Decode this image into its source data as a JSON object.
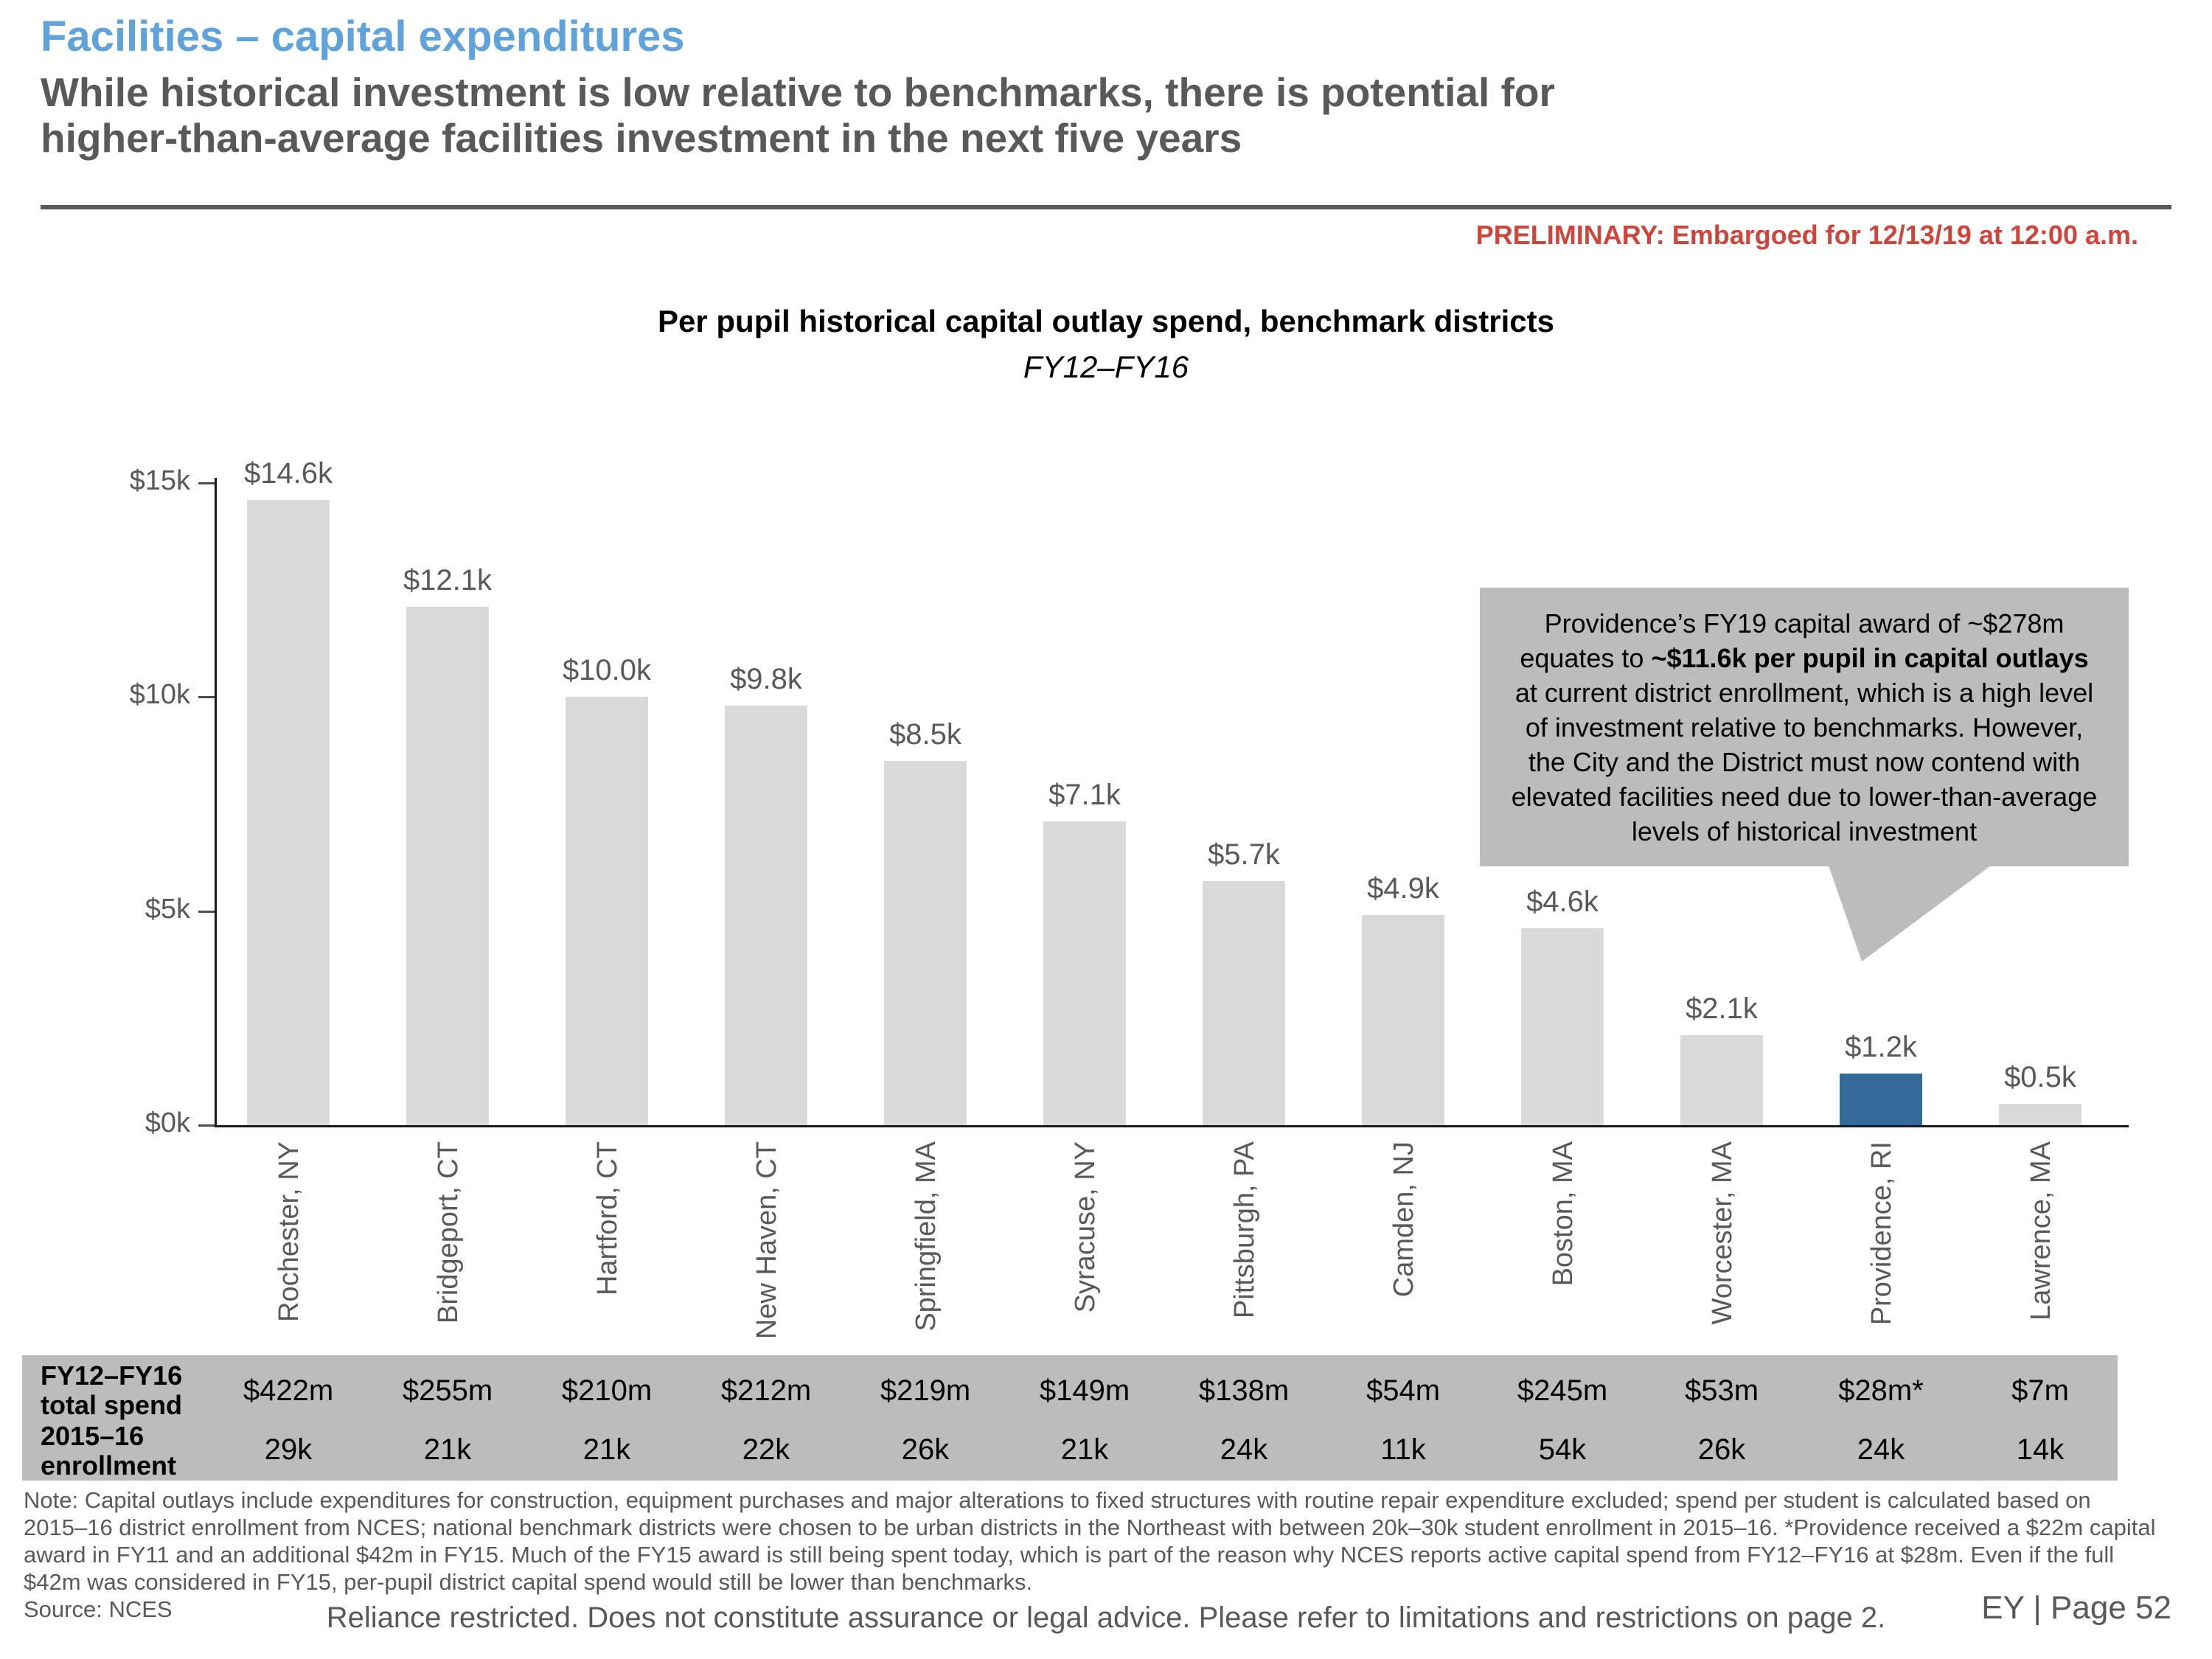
{
  "slide": {
    "title": "Facilities – capital expenditures",
    "subtitle": "While historical investment is low relative to benchmarks, there is potential for\nhigher-than-average facilities investment in the next five years",
    "preliminary": "PRELIMINARY: Embargoed for 12/13/19 at 12:00 a.m.",
    "footer": {
      "reliance": "Reliance restricted. Does not constitute assurance or legal advice. Please refer to limitations and restrictions on page 2.",
      "page": "EY | Page 52"
    }
  },
  "chart_data": {
    "type": "bar",
    "title": "Per pupil historical capital outlay spend, benchmark districts",
    "subtitle": "FY12–FY16",
    "categories": [
      "Rochester, NY",
      "Bridgeport, CT",
      "Hartford, CT",
      "New Haven, CT",
      "Springfield, MA",
      "Syracuse, NY",
      "Pittsburgh, PA",
      "Camden, NJ",
      "Boston, MA",
      "Worcester, MA",
      "Providence, RI",
      "Lawrence, MA"
    ],
    "values": [
      14.6,
      12.1,
      10.0,
      9.8,
      8.5,
      7.1,
      5.7,
      4.9,
      4.6,
      2.1,
      1.2,
      0.5
    ],
    "value_labels": [
      "$14.6k",
      "$12.1k",
      "$10.0k",
      "$9.8k",
      "$8.5k",
      "$7.1k",
      "$5.7k",
      "$4.9k",
      "$4.6k",
      "$2.1k",
      "$1.2k",
      "$0.5k"
    ],
    "units": "USD thousands per pupil",
    "ylim": [
      0,
      15
    ],
    "yticks": [
      {
        "label": "$15k",
        "value": 15
      },
      {
        "label": "$10k",
        "value": 10
      },
      {
        "label": "$5k",
        "value": 5
      },
      {
        "label": "$0k",
        "value": 0
      }
    ],
    "grid": false,
    "legend": "none",
    "highlight_index": 10,
    "bar_color": "#D9D9D9",
    "highlight_color": "#336A9A"
  },
  "callout": {
    "text_pre": "Providence’s FY19 capital award of ~$278m equates to ",
    "text_bold": "~$11.6k per pupil in capital outlays",
    "text_post": " at current district enrollment, which is a high level of investment relative to benchmarks. However, the City and the District must now contend with elevated facilities need due to lower-than-average levels of historical investment"
  },
  "table": {
    "row1_label": "FY12–FY16\ntotal spend",
    "row2_label": "2015–16\nenrollment",
    "row1_values": [
      "$422m",
      "$255m",
      "$210m",
      "$212m",
      "$219m",
      "$149m",
      "$138m",
      "$54m",
      "$245m",
      "$53m",
      "$28m*",
      "$7m"
    ],
    "row2_values": [
      "29k",
      "21k",
      "21k",
      "22k",
      "26k",
      "21k",
      "24k",
      "11k",
      "54k",
      "26k",
      "24k",
      "14k"
    ]
  },
  "notes": {
    "lines": [
      "Note: Capital outlays include expenditures for construction, equipment purchases and major alterations to fixed structures with routine repair expenditure excluded; spend per student is calculated based on",
      "2015–16 district enrollment from NCES; national benchmark districts were chosen to be urban districts in the Northeast with between 20k–30k student enrollment in 2015–16. *Providence received a $22m capital",
      "award in FY11 and an additional $42m in FY15. Much of the FY15 award is still being spent today, which is part of the reason why NCES reports active capital spend from FY12–FY16 at $28m. Even if the full",
      "$42m was considered in FY15, per-pupil district capital spend would still be lower than benchmarks."
    ],
    "source": "Source: NCES"
  },
  "colors": {
    "title_blue": "#5FA3DA",
    "heading_gray": "#595959",
    "preliminary_red": "#D0453B",
    "bar_gray": "#D9D9D9",
    "highlight_blue": "#336A9A",
    "band_gray": "#BCBCBC"
  }
}
